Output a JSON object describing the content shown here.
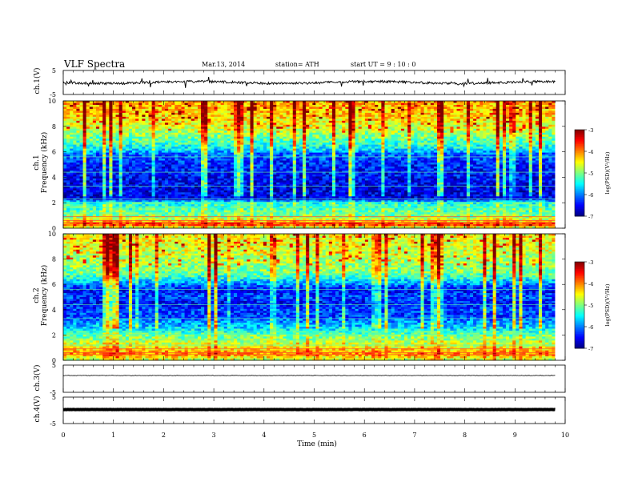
{
  "header": {
    "title": "VLF  Spectra",
    "date": "Mar.13,  2014",
    "station": "station= ATH",
    "start": "start  UT  =   9  : 10 : 0"
  },
  "labels": {
    "ch1_waveform": "ch.1(V)",
    "ch1_spectrogram": "ch.1",
    "ch2_spectrogram": "ch.2",
    "freq_axis": "Frequency  (kHz)",
    "ch3_waveform": "ch.3(V)",
    "ch4_waveform": "ch.4(V)",
    "x_axis": "Time  (min)",
    "colorbar": "log(PSD)(V²/Hz)"
  },
  "chart_data": [
    {
      "type": "line",
      "name": "ch1-waveform",
      "ylabel": "ch.1(V)",
      "ylim": [
        -5,
        5
      ],
      "xlim": [
        0,
        10
      ],
      "yticks": [
        "5",
        "-5"
      ],
      "x_end_min": 9.8
    },
    {
      "type": "heatmap",
      "name": "ch1-spectrogram",
      "channel": "ch.1",
      "ylabel": "Frequency  (kHz)",
      "ylim": [
        0,
        10
      ],
      "yticks": [
        "0",
        "2",
        "4",
        "6",
        "8",
        "10"
      ],
      "xlim": [
        0,
        10
      ],
      "x_end_min": 9.8,
      "freq_profile_log_psd": [
        {
          "f": 0.0,
          "v": -5.0
        },
        {
          "f": 0.3,
          "v": -3.5
        },
        {
          "f": 0.6,
          "v": -4.5
        },
        {
          "f": 1.0,
          "v": -5.0
        },
        {
          "f": 1.5,
          "v": -5.2
        },
        {
          "f": 2.0,
          "v": -5.4
        },
        {
          "f": 2.3,
          "v": -6.6
        },
        {
          "f": 3.0,
          "v": -6.6
        },
        {
          "f": 4.0,
          "v": -6.5
        },
        {
          "f": 5.0,
          "v": -6.4
        },
        {
          "f": 5.8,
          "v": -6.1
        },
        {
          "f": 6.3,
          "v": -5.5
        },
        {
          "f": 7.0,
          "v": -5.1
        },
        {
          "f": 8.0,
          "v": -4.6
        },
        {
          "f": 9.0,
          "v": -4.3
        },
        {
          "f": 10.0,
          "v": -4.2
        }
      ]
    },
    {
      "type": "heatmap",
      "name": "ch2-spectrogram",
      "channel": "ch.2",
      "ylabel": "Frequency  (kHz)",
      "ylim": [
        0,
        10
      ],
      "yticks": [
        "0",
        "2",
        "4",
        "6",
        "8",
        "10"
      ],
      "xlim": [
        0,
        10
      ],
      "x_end_min": 9.8,
      "freq_profile_log_psd": [
        {
          "f": 0.0,
          "v": -4.8
        },
        {
          "f": 0.5,
          "v": -4.0
        },
        {
          "f": 1.0,
          "v": -4.5
        },
        {
          "f": 1.5,
          "v": -4.8
        },
        {
          "f": 2.0,
          "v": -5.1
        },
        {
          "f": 2.5,
          "v": -5.6
        },
        {
          "f": 3.0,
          "v": -5.9
        },
        {
          "f": 3.5,
          "v": -6.3
        },
        {
          "f": 4.0,
          "v": -6.2
        },
        {
          "f": 4.5,
          "v": -6.5
        },
        {
          "f": 5.0,
          "v": -6.2
        },
        {
          "f": 5.5,
          "v": -6.5
        },
        {
          "f": 6.0,
          "v": -6.0
        },
        {
          "f": 6.5,
          "v": -5.4
        },
        {
          "f": 7.0,
          "v": -5.0
        },
        {
          "f": 8.0,
          "v": -4.8
        },
        {
          "f": 9.0,
          "v": -4.6
        },
        {
          "f": 10.0,
          "v": -4.5
        }
      ]
    },
    {
      "type": "line",
      "name": "ch3-waveform",
      "ylabel": "ch.3(V)",
      "ylim": [
        -5,
        5
      ],
      "xlim": [
        0,
        10
      ],
      "yticks": [
        "5",
        "-5"
      ],
      "x_end_min": 9.8
    },
    {
      "type": "line",
      "name": "ch4-waveform",
      "ylabel": "ch.4(V)",
      "ylim": [
        -5,
        5
      ],
      "xlim": [
        0,
        10
      ],
      "yticks": [
        "5",
        "-5"
      ],
      "x_end_min": 9.8
    },
    {
      "type": "colorbar",
      "label": "log(PSD)(V²/Hz)",
      "range": [
        -7,
        -3
      ],
      "ticks": [
        "-3",
        "-4",
        "-5",
        "-6",
        "-7"
      ]
    },
    {
      "type": "axis",
      "xlabel": "Time  (min)",
      "xlim": [
        0,
        10
      ],
      "xticks": [
        "0",
        "1",
        "2",
        "3",
        "4",
        "5",
        "6",
        "7",
        "8",
        "9",
        "10"
      ]
    }
  ]
}
